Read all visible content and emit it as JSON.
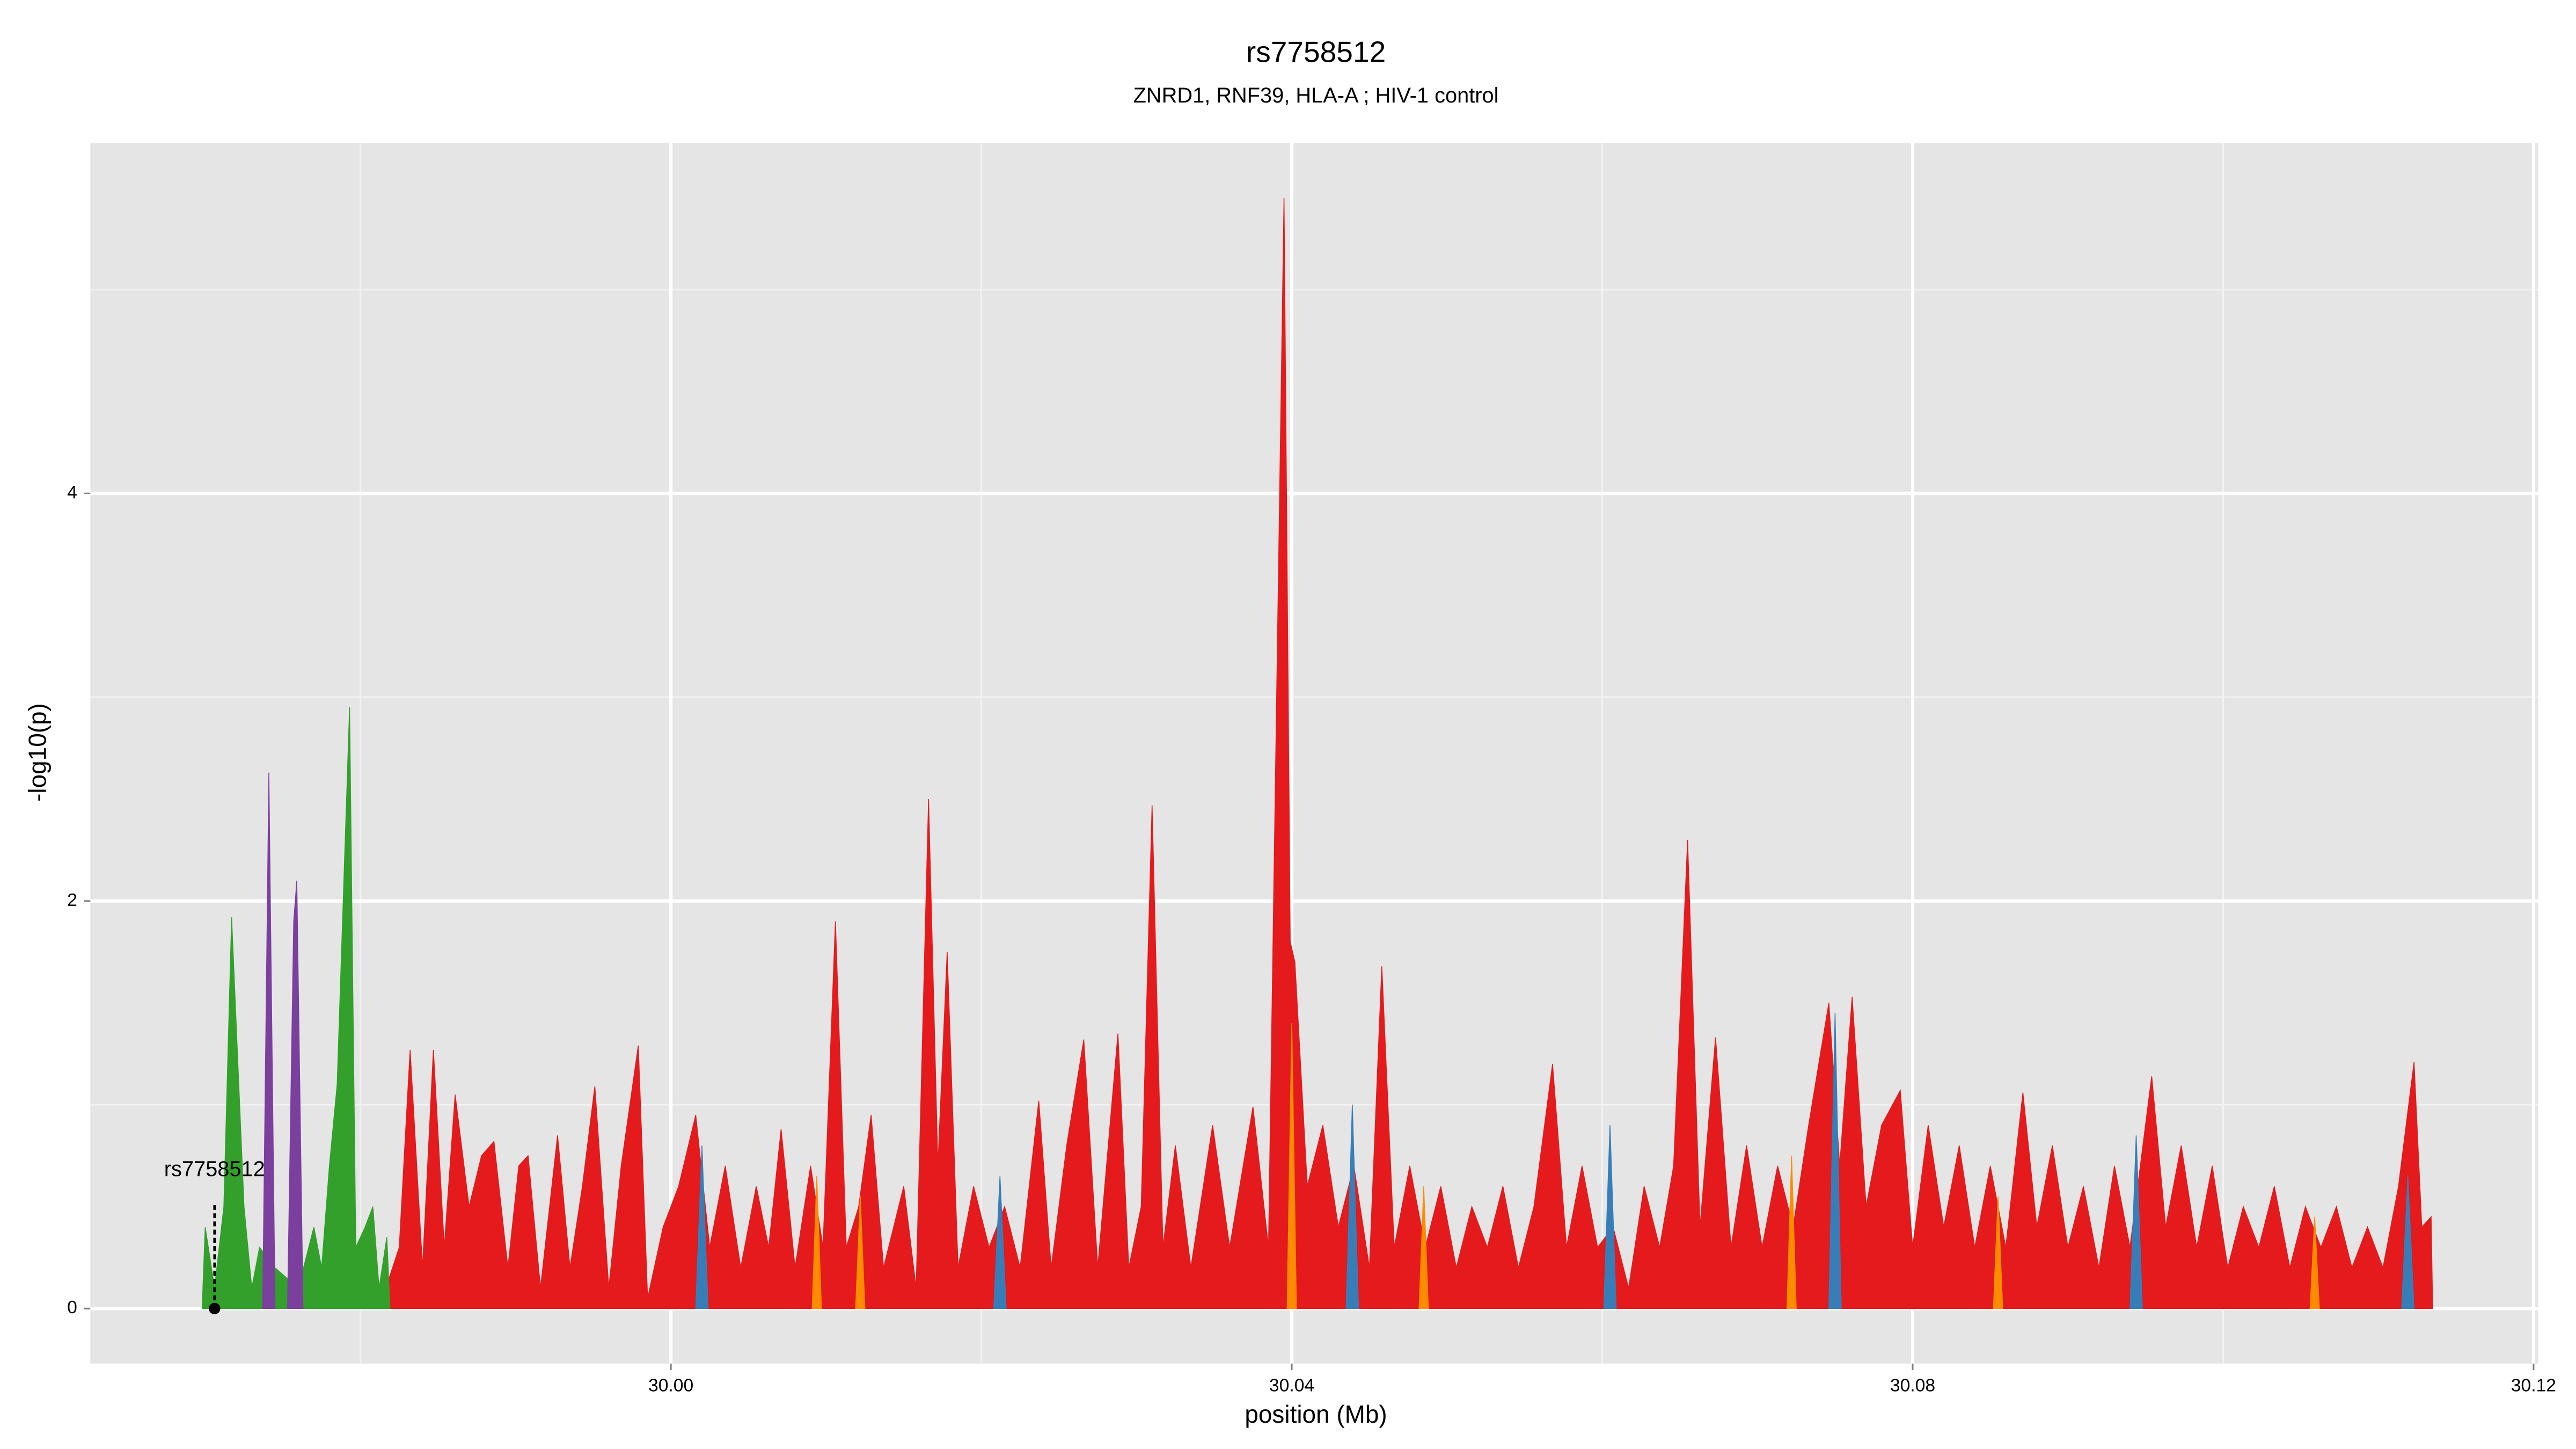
{
  "chart_data": {
    "type": "area",
    "title": "rs7758512",
    "subtitle": "ZNRD1, RNF39, HLA-A ; HIV-1 control",
    "xlabel": "position (Mb)",
    "ylabel": "-log10(p)",
    "xlim": [
      29.9626,
      30.1203
    ],
    "ylim": [
      -0.27,
      5.72
    ],
    "xticks": [
      {
        "value": 30.0,
        "label": "30.00"
      },
      {
        "value": 30.04,
        "label": "30.04"
      },
      {
        "value": 30.08,
        "label": "30.08"
      },
      {
        "value": 30.12,
        "label": "30.12"
      }
    ],
    "yticks": [
      0,
      2,
      4
    ],
    "x_minor_grid": [
      29.98,
      30.02,
      30.06,
      30.1
    ],
    "y_minor_grid": [
      1,
      3,
      5
    ],
    "grid": true,
    "highlight": {
      "label": "rs7758512",
      "x": 29.9706,
      "y": 0
    },
    "series": [
      {
        "color": "#e41a1c",
        "x": [
          29.9812,
          29.9825,
          29.9832,
          29.984,
          29.9847,
          29.9854,
          29.9861,
          29.987,
          29.9878,
          29.9886,
          29.9895,
          29.9902,
          29.9908,
          29.9916,
          29.9927,
          29.9935,
          29.9943,
          29.9951,
          29.996,
          29.9968,
          29.9979,
          29.9985,
          29.9995,
          30.0005,
          30.0016,
          30.0025,
          30.0035,
          30.0045,
          30.0055,
          30.0063,
          30.0071,
          30.008,
          30.009,
          30.0098,
          30.0106,
          30.0113,
          30.0121,
          30.0129,
          30.0137,
          30.015,
          30.0158,
          30.0166,
          30.0172,
          30.0178,
          30.0185,
          30.0195,
          30.0205,
          30.0215,
          30.0225,
          30.0237,
          30.0245,
          30.0255,
          30.0266,
          30.0275,
          30.0288,
          30.0295,
          30.0303,
          30.031,
          30.0317,
          30.0325,
          30.0335,
          30.0349,
          30.036,
          30.0375,
          30.0385,
          30.0395,
          30.0399,
          30.0402,
          30.041,
          30.042,
          30.043,
          30.044,
          30.045,
          30.0458,
          30.0466,
          30.0476,
          30.0486,
          30.0496,
          30.0506,
          30.0516,
          30.0526,
          30.0536,
          30.0546,
          30.0556,
          30.0568,
          30.0577,
          30.0587,
          30.0597,
          30.0607,
          30.0617,
          30.0627,
          30.0637,
          30.0646,
          30.0655,
          30.0663,
          30.0673,
          30.0683,
          30.0693,
          30.0703,
          30.0713,
          30.0723,
          30.0733,
          30.0746,
          30.0753,
          30.0761,
          30.077,
          30.078,
          30.0792,
          30.08,
          30.081,
          30.082,
          30.083,
          30.084,
          30.085,
          30.086,
          30.0871,
          30.088,
          30.089,
          30.09,
          30.091,
          30.092,
          30.093,
          30.094,
          30.0954,
          30.0963,
          30.0973,
          30.0983,
          30.0993,
          30.1003,
          30.1013,
          30.1023,
          30.1033,
          30.1043,
          30.1053,
          30.1063,
          30.1073,
          30.1083,
          30.1093,
          30.1103,
          30.1113,
          30.1123,
          30.1128,
          30.1134,
          30.1135
        ],
        "values": [
          0,
          0.3,
          1.27,
          0.2,
          1.27,
          0.3,
          1.05,
          0.5,
          0.75,
          0.82,
          0.2,
          0.7,
          0.75,
          0.1,
          0.85,
          0.2,
          0.6,
          1.09,
          0.1,
          0.7,
          1.29,
          0.05,
          0.4,
          0.6,
          0.95,
          0.3,
          0.7,
          0.2,
          0.6,
          0.3,
          0.88,
          0.2,
          0.7,
          0.3,
          1.9,
          0.3,
          0.5,
          0.95,
          0.2,
          0.6,
          0.1,
          2.5,
          0.7,
          1.75,
          0.2,
          0.6,
          0.3,
          0.5,
          0.2,
          1.02,
          0.2,
          0.8,
          1.32,
          0.2,
          1.35,
          0.2,
          0.5,
          2.47,
          0.3,
          0.8,
          0.2,
          0.9,
          0.3,
          0.99,
          0.3,
          5.45,
          1.8,
          1.7,
          0.6,
          0.9,
          0.4,
          0.7,
          0.2,
          1.68,
          0.3,
          0.7,
          0.3,
          0.6,
          0.2,
          0.5,
          0.3,
          0.6,
          0.2,
          0.5,
          1.2,
          0.3,
          0.7,
          0.3,
          0.4,
          0.1,
          0.6,
          0.3,
          0.7,
          2.3,
          0.4,
          1.33,
          0.3,
          0.8,
          0.3,
          0.7,
          0.4,
          0.9,
          1.5,
          0.7,
          1.53,
          0.5,
          0.9,
          1.07,
          0.3,
          0.9,
          0.4,
          0.8,
          0.3,
          0.7,
          0.3,
          1.06,
          0.4,
          0.8,
          0.3,
          0.6,
          0.2,
          0.7,
          0.3,
          1.14,
          0.4,
          0.8,
          0.3,
          0.7,
          0.2,
          0.5,
          0.3,
          0.6,
          0.2,
          0.5,
          0.3,
          0.5,
          0.2,
          0.4,
          0.2,
          0.6,
          1.21,
          0.4,
          0.45,
          0
        ]
      },
      {
        "color": "#33a02c",
        "x": [
          29.9698,
          29.97,
          29.9706,
          29.9712,
          29.9717,
          29.9725,
          29.973,
          29.9735,
          29.9745,
          29.976,
          29.977,
          29.9775,
          29.978,
          29.9785,
          29.9793,
          29.9797,
          29.9803,
          29.9808,
          29.9812,
          29.9817,
          29.9819
        ],
        "values": [
          0,
          0.4,
          0.1,
          0.5,
          1.92,
          0.5,
          0.1,
          0.3,
          0.2,
          0.1,
          0.4,
          0.2,
          0.7,
          1.1,
          2.95,
          0.3,
          0.4,
          0.5,
          0.1,
          0.35,
          0
        ]
      },
      {
        "color": "#7b3f9e",
        "x": [
          29.9737,
          29.9741,
          29.9745,
          null,
          29.9753,
          29.9757,
          29.9759,
          29.9763
        ],
        "values": [
          0,
          2.63,
          0,
          null,
          0,
          1.9,
          2.1,
          0
        ]
      },
      {
        "color": "#377eb8",
        "x": [
          30.0016,
          30.002,
          30.0024,
          null,
          30.0208,
          30.0212,
          30.0216,
          null,
          30.0435,
          30.0439,
          30.0443,
          null,
          30.0601,
          30.0605,
          30.0609,
          null,
          30.0746,
          30.075,
          30.0754,
          null,
          30.094,
          30.0944,
          30.0948,
          null,
          30.1115,
          30.1119,
          30.1123
        ],
        "values": [
          0,
          0.8,
          0,
          null,
          0,
          0.65,
          0,
          null,
          0,
          1.0,
          0,
          null,
          0,
          0.9,
          0,
          null,
          0,
          1.45,
          0,
          null,
          0,
          0.85,
          0,
          null,
          0,
          0.65,
          0
        ]
      },
      {
        "color": "#ff8c00",
        "x": [
          30.0091,
          30.0094,
          30.0097,
          null,
          30.0119,
          30.0122,
          30.0125,
          null,
          30.0397,
          30.04,
          30.0403,
          null,
          30.0482,
          30.0485,
          30.0488,
          null,
          30.0719,
          30.0722,
          30.0725,
          null,
          30.0852,
          30.0855,
          30.0858,
          null,
          30.1056,
          30.1059,
          30.1062
        ],
        "values": [
          0,
          0.65,
          0,
          null,
          0,
          0.55,
          0,
          null,
          0,
          1.4,
          0,
          null,
          0,
          0.6,
          0,
          null,
          0,
          0.75,
          0,
          null,
          0,
          0.55,
          0,
          null,
          0,
          0.45,
          0
        ]
      }
    ]
  }
}
